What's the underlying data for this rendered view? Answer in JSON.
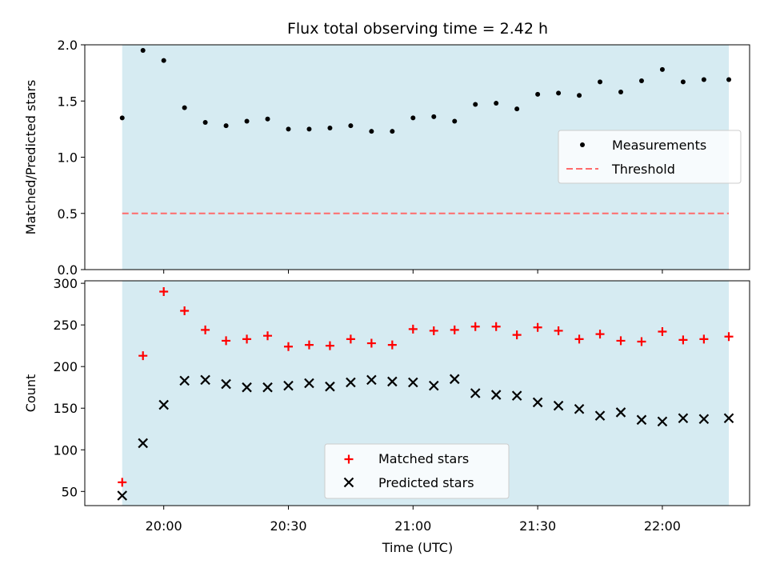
{
  "figure": {
    "title": "Flux total observing time = 2.42 h",
    "xlabel": "Time (UTC)"
  },
  "colors": {
    "shade": "#add8e6",
    "measurements": "#000000",
    "threshold": "#ff6b6b",
    "matched": "#ff0000",
    "predicted": "#000000"
  },
  "chart_data": [
    {
      "type": "scatter",
      "ylabel": "Matched/Predicted stars",
      "xlim": [
        "19:41",
        "22:21"
      ],
      "ylim": [
        0.0,
        2.0
      ],
      "yticks": [
        0.0,
        0.5,
        1.0,
        1.5,
        2.0
      ],
      "ytick_labels": [
        "0.0",
        "0.5",
        "1.0",
        "1.5",
        "2.0"
      ],
      "shaded_span": [
        "19:50",
        "22:16"
      ],
      "legend_position": "center-right",
      "series": [
        {
          "name": "Measurements",
          "marker": "dot",
          "x": [
            "19:50",
            "19:55",
            "20:00",
            "20:05",
            "20:10",
            "20:15",
            "20:20",
            "20:25",
            "20:30",
            "20:35",
            "20:40",
            "20:45",
            "20:50",
            "20:55",
            "21:00",
            "21:05",
            "21:10",
            "21:15",
            "21:20",
            "21:25",
            "21:30",
            "21:35",
            "21:40",
            "21:45",
            "21:50",
            "21:55",
            "22:00",
            "22:05",
            "22:10",
            "22:16"
          ],
          "y": [
            1.35,
            1.95,
            1.86,
            1.44,
            1.31,
            1.28,
            1.32,
            1.34,
            1.25,
            1.25,
            1.26,
            1.28,
            1.23,
            1.23,
            1.35,
            1.36,
            1.32,
            1.47,
            1.48,
            1.43,
            1.56,
            1.57,
            1.55,
            1.67,
            1.58,
            1.68,
            1.78,
            1.67,
            1.69,
            1.69
          ]
        },
        {
          "name": "Threshold",
          "style": "dashed-line",
          "x": [
            "19:50",
            "22:16"
          ],
          "y": [
            0.5,
            0.5
          ]
        }
      ]
    },
    {
      "type": "scatter",
      "ylabel": "Count",
      "xlim": [
        "19:41",
        "22:21"
      ],
      "ylim": [
        33,
        303
      ],
      "yticks": [
        50,
        100,
        150,
        200,
        250,
        300
      ],
      "ytick_labels": [
        "50",
        "100",
        "150",
        "200",
        "250",
        "300"
      ],
      "xticks": [
        "20:00",
        "20:30",
        "21:00",
        "21:30",
        "22:00"
      ],
      "shaded_span": [
        "19:50",
        "22:16"
      ],
      "legend_position": "bottom-center",
      "series": [
        {
          "name": "Matched stars",
          "marker": "plus",
          "x": [
            "19:50",
            "19:55",
            "20:00",
            "20:05",
            "20:10",
            "20:15",
            "20:20",
            "20:25",
            "20:30",
            "20:35",
            "20:40",
            "20:45",
            "20:50",
            "20:55",
            "21:00",
            "21:05",
            "21:10",
            "21:15",
            "21:20",
            "21:25",
            "21:30",
            "21:35",
            "21:40",
            "21:45",
            "21:50",
            "21:55",
            "22:00",
            "22:05",
            "22:10",
            "22:16"
          ],
          "y": [
            61,
            213,
            290,
            267,
            244,
            231,
            233,
            237,
            224,
            226,
            225,
            233,
            228,
            226,
            245,
            243,
            244,
            248,
            248,
            238,
            247,
            243,
            233,
            239,
            231,
            230,
            242,
            232,
            233,
            236
          ]
        },
        {
          "name": "Predicted stars",
          "marker": "x",
          "x": [
            "19:50",
            "19:55",
            "20:00",
            "20:05",
            "20:10",
            "20:15",
            "20:20",
            "20:25",
            "20:30",
            "20:35",
            "20:40",
            "20:45",
            "20:50",
            "20:55",
            "21:00",
            "21:05",
            "21:10",
            "21:15",
            "21:20",
            "21:25",
            "21:30",
            "21:35",
            "21:40",
            "21:45",
            "21:50",
            "21:55",
            "22:00",
            "22:05",
            "22:10",
            "22:16"
          ],
          "y": [
            45,
            108,
            154,
            183,
            184,
            179,
            175,
            175,
            177,
            180,
            176,
            181,
            184,
            182,
            181,
            177,
            185,
            168,
            166,
            165,
            157,
            153,
            149,
            141,
            145,
            136,
            134,
            138,
            137,
            138
          ]
        }
      ]
    }
  ]
}
